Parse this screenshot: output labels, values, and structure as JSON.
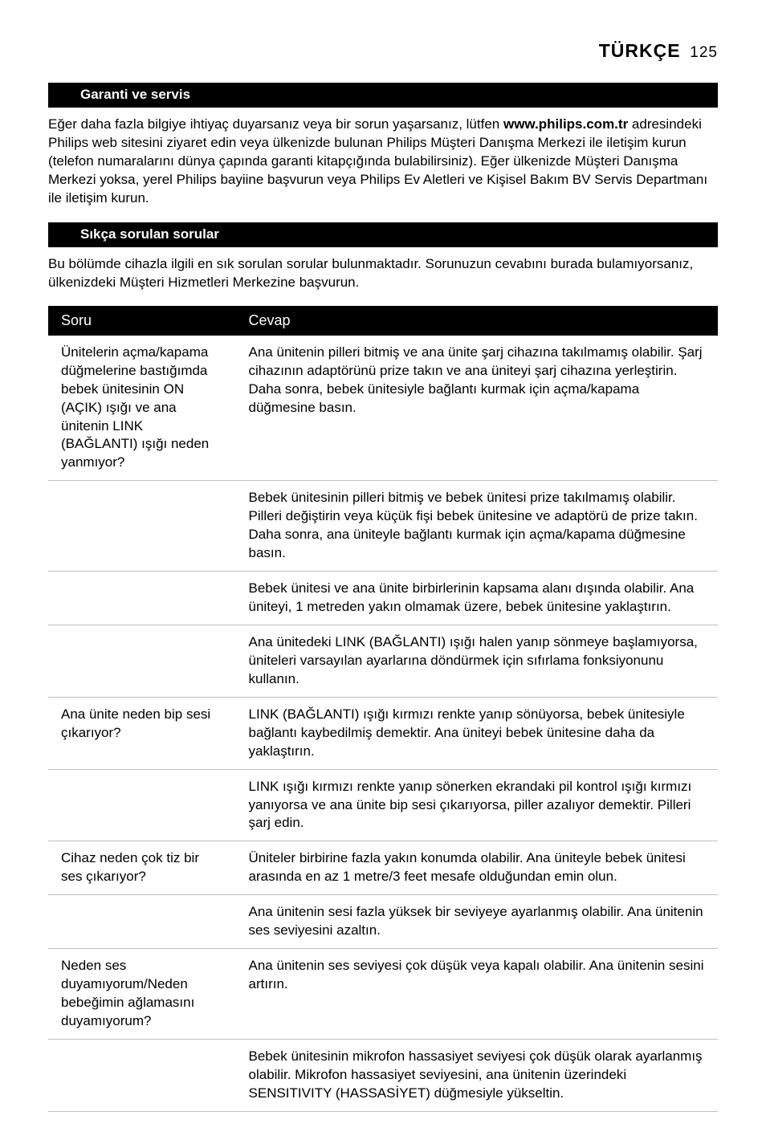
{
  "header": {
    "lang": "TÜRKÇE",
    "page": "125"
  },
  "section1": {
    "title": "Garanti ve servis",
    "body_pre": "Eğer daha fazla bilgiye ihtiyaç duyarsanız veya bir sorun yaşarsanız, lütfen ",
    "body_bold": "www.philips.com.tr",
    "body_post": " adresindeki Philips web sitesini ziyaret edin veya ülkenizde bulunan Philips Müşteri Danışma Merkezi ile iletişim kurun (telefon numaralarını dünya çapında garanti kitapçığında bulabilirsiniz). Eğer ülkenizde Müşteri Danışma Merkezi yoksa, yerel Philips bayiine başvurun veya Philips Ev Aletleri ve Kişisel Bakım BV Servis Departmanı ile iletişim kurun."
  },
  "section2": {
    "title": "Sıkça sorulan sorular",
    "intro": "Bu bölümde cihazla ilgili en sık sorulan sorular bulunmaktadır. Sorunuzun cevabını burada bulamıyorsanız, ülkenizdeki Müşteri Hizmetleri Merkezine başvurun."
  },
  "table": {
    "col1": "Soru",
    "col2": "Cevap",
    "rows": [
      {
        "q": "Ünitelerin açma/kapama düğmelerine bastığımda bebek ünitesinin ON (AÇIK) ışığı ve ana ünitenin LINK (BAĞLANTI) ışığı neden yanmıyor?",
        "a": "Ana ünitenin pilleri bitmiş ve ana ünite şarj cihazına takılmamış olabilir. Şarj cihazının adaptörünü prize takın ve ana üniteyi şarj cihazına yerleştirin. Daha sonra, bebek ünitesiyle bağlantı kurmak için açma/kapama düğmesine basın."
      },
      {
        "q": "",
        "a": "Bebek ünitesinin pilleri bitmiş ve bebek ünitesi prize takılmamış olabilir. Pilleri değiştirin veya küçük fişi bebek ünitesine ve adaptörü de prize takın. Daha sonra, ana üniteyle bağlantı kurmak için açma/kapama düğmesine basın."
      },
      {
        "q": "",
        "a": "Bebek ünitesi ve ana ünite birbirlerinin kapsama alanı dışında olabilir. Ana üniteyi, 1 metreden yakın olmamak üzere, bebek ünitesine yaklaştırın."
      },
      {
        "q": "",
        "a": "Ana ünitedeki LINK (BAĞLANTI) ışığı halen yanıp sönmeye başlamıyorsa, üniteleri varsayılan ayarlarına döndürmek için sıfırlama fonksiyonunu kullanın."
      },
      {
        "q": "Ana ünite neden bip sesi çıkarıyor?",
        "a": "LINK (BAĞLANTI) ışığı kırmızı renkte yanıp sönüyorsa, bebek ünitesiyle bağlantı kaybedilmiş demektir. Ana üniteyi bebek ünitesine daha da yaklaştırın."
      },
      {
        "q": "",
        "a": "LINK ışığı kırmızı renkte yanıp sönerken ekrandaki pil kontrol ışığı kırmızı yanıyorsa ve ana ünite bip sesi çıkarıyorsa, piller azalıyor demektir. Pilleri şarj edin."
      },
      {
        "q": "Cihaz neden çok tiz bir ses çıkarıyor?",
        "a": "Üniteler birbirine fazla yakın konumda olabilir. Ana üniteyle bebek ünitesi arasında en az 1 metre/3 feet mesafe olduğundan emin olun."
      },
      {
        "q": "",
        "a": "Ana ünitenin sesi fazla yüksek bir seviyeye ayarlanmış olabilir. Ana ünitenin ses seviyesini azaltın."
      },
      {
        "q": "Neden ses duyamıyorum/Neden bebeğimin ağlamasını duyamıyorum?",
        "a": "Ana ünitenin ses seviyesi çok düşük veya kapalı olabilir. Ana ünitenin sesini artırın."
      },
      {
        "q": "",
        "a": "Bebek ünitesinin mikrofon hassasiyet seviyesi çok düşük olarak ayarlanmış olabilir. Mikrofon hassasiyet seviyesini, ana ünitenin üzerindeki SENSITIVITY (HASSASİYET) düğmesiyle yükseltin."
      }
    ]
  }
}
